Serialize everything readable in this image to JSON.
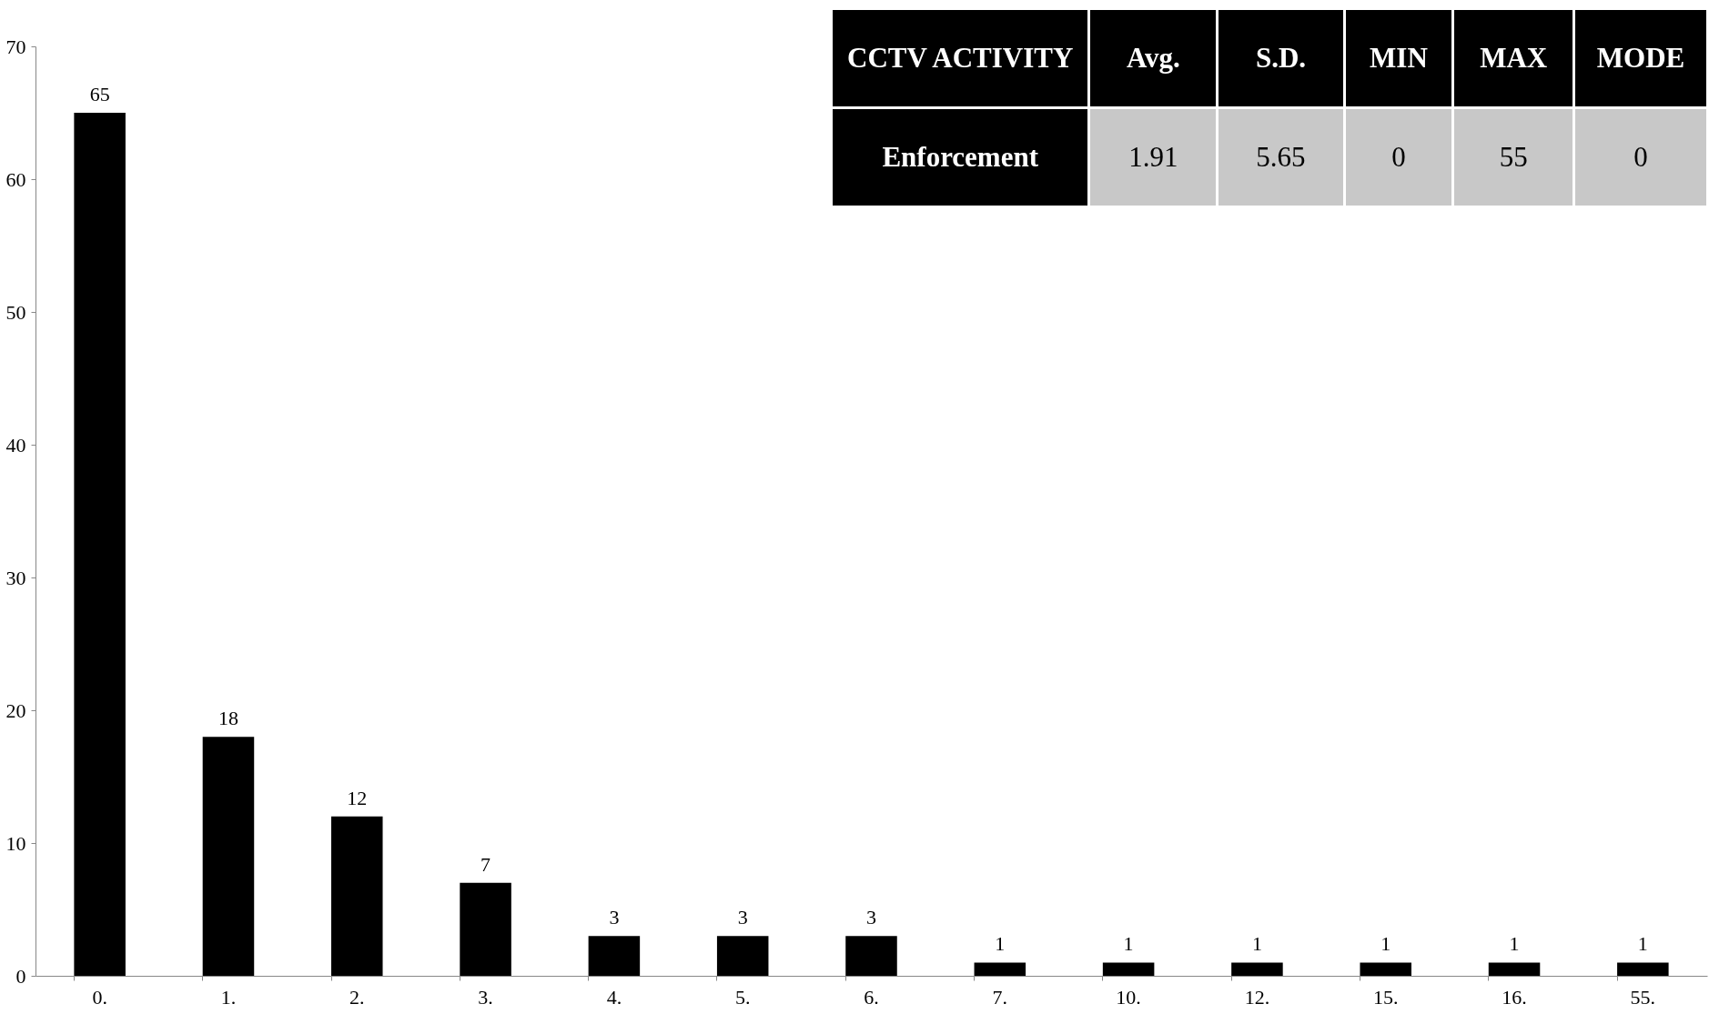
{
  "chart_data": {
    "type": "bar",
    "categories": [
      "0.",
      "1.",
      "2.",
      "3.",
      "4.",
      "5.",
      "6.",
      "7.",
      "10.",
      "12.",
      "15.",
      "16.",
      "55."
    ],
    "values": [
      65,
      18,
      12,
      7,
      3,
      3,
      3,
      1,
      1,
      1,
      1,
      1,
      1
    ],
    "color": "#000000",
    "ylim": [
      0,
      70
    ],
    "yticks": [
      0,
      10,
      20,
      30,
      40,
      50,
      60,
      70
    ],
    "grid": false,
    "data_labels": true,
    "annotations": [
      "CCTV ACTIVITY",
      "Avg.",
      "S.D.",
      "MIN",
      "MAX",
      "MODE",
      "Enforcement",
      "1.91",
      "5.65",
      "0",
      "55",
      "0"
    ]
  }
}
